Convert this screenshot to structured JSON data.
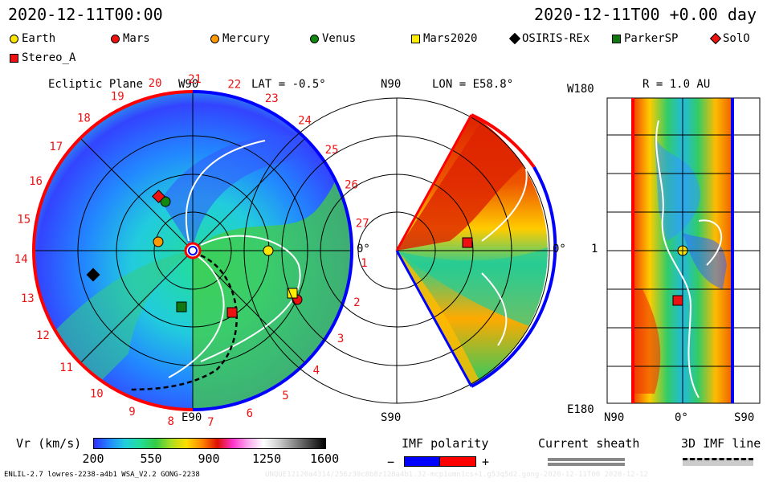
{
  "header": {
    "left_time": "2020-12-11T00:00",
    "right_time": "2020-12-11T00 +0.00 day"
  },
  "legend": [
    {
      "name": "Earth",
      "shape": "circle",
      "color": "#ffe600"
    },
    {
      "name": "Mars",
      "shape": "circle",
      "color": "#ee1111"
    },
    {
      "name": "Mercury",
      "shape": "circle",
      "color": "#ff9900"
    },
    {
      "name": "Venus",
      "shape": "circle",
      "color": "#118811"
    },
    {
      "name": "Mars2020",
      "shape": "square",
      "color": "#ffee00"
    },
    {
      "name": "OSIRIS-REx",
      "shape": "diamond",
      "color": "#000000"
    },
    {
      "name": "ParkerSP",
      "shape": "square",
      "color": "#117711"
    },
    {
      "name": "SolO",
      "shape": "diamond",
      "color": "#ee1111"
    },
    {
      "name": "Stereo_A",
      "shape": "square",
      "color": "#ee1111"
    }
  ],
  "panels": {
    "ecliptic": {
      "title": "Ecliptic Plane",
      "top_label": "W90",
      "bottom_label": "E90",
      "right_label": "0°",
      "lat_label": "LAT = -0.5°",
      "hour_labels": [
        "1",
        "2",
        "3",
        "4",
        "5",
        "6",
        "7",
        "8",
        "9",
        "10",
        "11",
        "12",
        "13",
        "14",
        "15",
        "16",
        "17",
        "18",
        "19",
        "20",
        "21",
        "22",
        "23",
        "24",
        "25",
        "26",
        "27"
      ]
    },
    "meridional": {
      "top_label": "N90",
      "bottom_label": "S90",
      "lon_label": "LON = E58.8°",
      "right_label": "0°"
    },
    "lonlat": {
      "top_label": "W180",
      "bottom_label": "E180",
      "left_value_label": "1",
      "r_label": "R = 1.0 AU",
      "x_labels": [
        "N90",
        "0°",
        "S90"
      ]
    }
  },
  "colorbar": {
    "label": "Vr (km/s)",
    "ticks": [
      "200",
      "550",
      "900",
      "1250",
      "1600"
    ],
    "range": [
      200,
      1600
    ],
    "stops": [
      "#3030ff",
      "#2288ff",
      "#22ccdd",
      "#22dd99",
      "#33cc44",
      "#aadd22",
      "#ffdd00",
      "#ff8800",
      "#dd1100",
      "#ff33cc",
      "#ffaaee",
      "#ffffff",
      "#cccccc",
      "#888888",
      "#444444",
      "#000000"
    ]
  },
  "imf": {
    "title": "IMF polarity",
    "minus": "−",
    "plus": "+",
    "neg_color": "#0000ff",
    "pos_color": "#ff0000"
  },
  "sheath": {
    "title": "Current sheath"
  },
  "imf3d": {
    "title": "3D IMF line"
  },
  "footer": {
    "left": "ENLIL-2.7 lowres-2238-a4b1 WSA_V2.2 GONG-2238",
    "right": "UNQUE12120a4314/256z30c8b8z128a4b1.32-mcp1umn1cs+1.g53q5d2.gong-2020-12-11T00    2020-12-12"
  },
  "chart_data": {
    "type": "heatmap",
    "title": "",
    "quantity": "Vr (km/s)",
    "color_scale_range": [
      200,
      1600
    ],
    "objects": [
      {
        "name": "Earth",
        "panel": "ecliptic"
      },
      {
        "name": "Mars",
        "panel": "ecliptic"
      },
      {
        "name": "Mercury",
        "panel": "ecliptic"
      },
      {
        "name": "Venus",
        "panel": "ecliptic"
      },
      {
        "name": "Mars2020",
        "panel": "ecliptic"
      },
      {
        "name": "OSIRIS-REx",
        "panel": "ecliptic"
      },
      {
        "name": "ParkerSP",
        "panel": "ecliptic"
      },
      {
        "name": "SolO",
        "panel": "ecliptic"
      },
      {
        "name": "Stereo_A",
        "panel": "ecliptic"
      }
    ]
  }
}
